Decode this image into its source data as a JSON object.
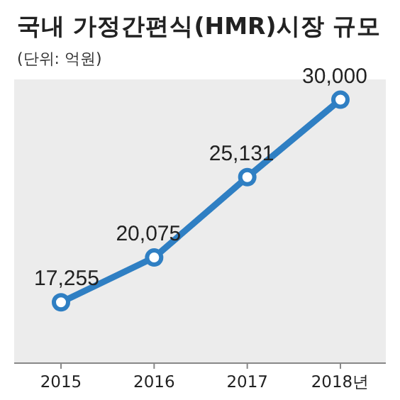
{
  "chart_data": {
    "type": "line",
    "title": "국내 가정간편식(HMR)시장 규모",
    "subtitle": "(단위: 억원)",
    "categories": [
      "2015",
      "2016",
      "2017",
      "2018년"
    ],
    "series": [
      {
        "color": "#2f7fc3",
        "values": [
          17255,
          20075,
          25131,
          30000
        ],
        "value_labels": [
          "17,255",
          "20,075",
          "25,131",
          "30,000"
        ]
      }
    ],
    "marker": "circle",
    "line_style": "solid"
  }
}
